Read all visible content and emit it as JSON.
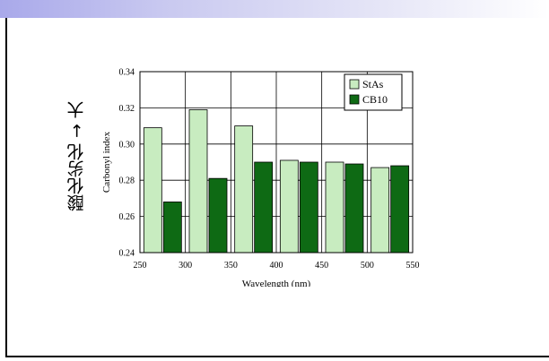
{
  "slide": {
    "side_label": "酸化劣化 → 大"
  },
  "colors": {
    "stas_fill": "#c8ecc0",
    "cb10_fill": "#0e6a14",
    "band": "#b4b4ec"
  },
  "chart_data": {
    "type": "bar",
    "title": "",
    "xlabel": "Wavelength (nm)",
    "ylabel": "Carbonyl index",
    "categories": [
      "275",
      "325",
      "375",
      "425",
      "475",
      "525"
    ],
    "x_ticks": [
      "250",
      "300",
      "350",
      "400",
      "450",
      "500",
      "550"
    ],
    "y_ticks": [
      "0.24",
      "0.26",
      "0.28",
      "0.30",
      "0.32",
      "0.34"
    ],
    "xlim": [
      250,
      550
    ],
    "ylim": [
      0.24,
      0.34
    ],
    "grid": true,
    "legend_position": "top-right",
    "series": [
      {
        "name": "StAs",
        "values": [
          0.309,
          0.319,
          0.31,
          0.291,
          0.29,
          0.287
        ]
      },
      {
        "name": "CB10",
        "values": [
          0.268,
          0.281,
          0.29,
          0.29,
          0.289,
          0.288
        ]
      }
    ]
  }
}
